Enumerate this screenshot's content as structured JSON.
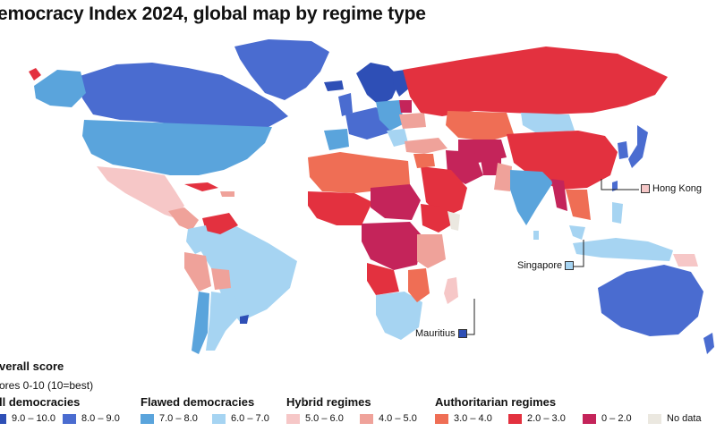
{
  "title": "emocracy Index 2024, global map by regime type",
  "colors": {
    "full_dark": "#2e4fb6",
    "full": "#4a6cd0",
    "flawed_mid": "#5aa4dc",
    "flawed_light": "#a6d4f2",
    "hybrid_light": "#f6c7c7",
    "hybrid": "#efa29a",
    "auth_orange": "#ef6e55",
    "auth_red": "#e3313f",
    "auth_crimson": "#c4245a",
    "nodata": "#ebe8e0",
    "ocean": "#ffffff"
  },
  "callouts": [
    {
      "label": "Hong Kong",
      "swatch_color": "#f6c7c7"
    },
    {
      "label": "Singapore",
      "swatch_color": "#a6d4f2"
    },
    {
      "label": "Mauritius",
      "swatch_color": "#2e4fb6"
    }
  ],
  "legend": {
    "heading": "verall score",
    "subheading": "ores 0-10 (10=best)",
    "groups": [
      {
        "name": "ll democracies",
        "items": [
          {
            "range": "9.0 – 10.0",
            "color": "#2e4fb6"
          },
          {
            "range": "8.0 – 9.0",
            "color": "#4a6cd0"
          }
        ]
      },
      {
        "name": "Flawed democracies",
        "items": [
          {
            "range": "7.0 – 8.0",
            "color": "#5aa4dc"
          },
          {
            "range": "6.0 – 7.0",
            "color": "#a6d4f2"
          }
        ]
      },
      {
        "name": "Hybrid regimes",
        "items": [
          {
            "range": "5.0 – 6.0",
            "color": "#f6c7c7"
          },
          {
            "range": "4.0 – 5.0",
            "color": "#efa29a"
          }
        ]
      },
      {
        "name": "Authoritarian regimes",
        "items": [
          {
            "range": "3.0 – 4.0",
            "color": "#ef6e55"
          },
          {
            "range": "2.0 – 3.0",
            "color": "#e3313f"
          },
          {
            "range": "0 – 2.0",
            "color": "#c4245a"
          },
          {
            "range": "No data",
            "color": "#ebe8e0"
          }
        ]
      }
    ]
  }
}
